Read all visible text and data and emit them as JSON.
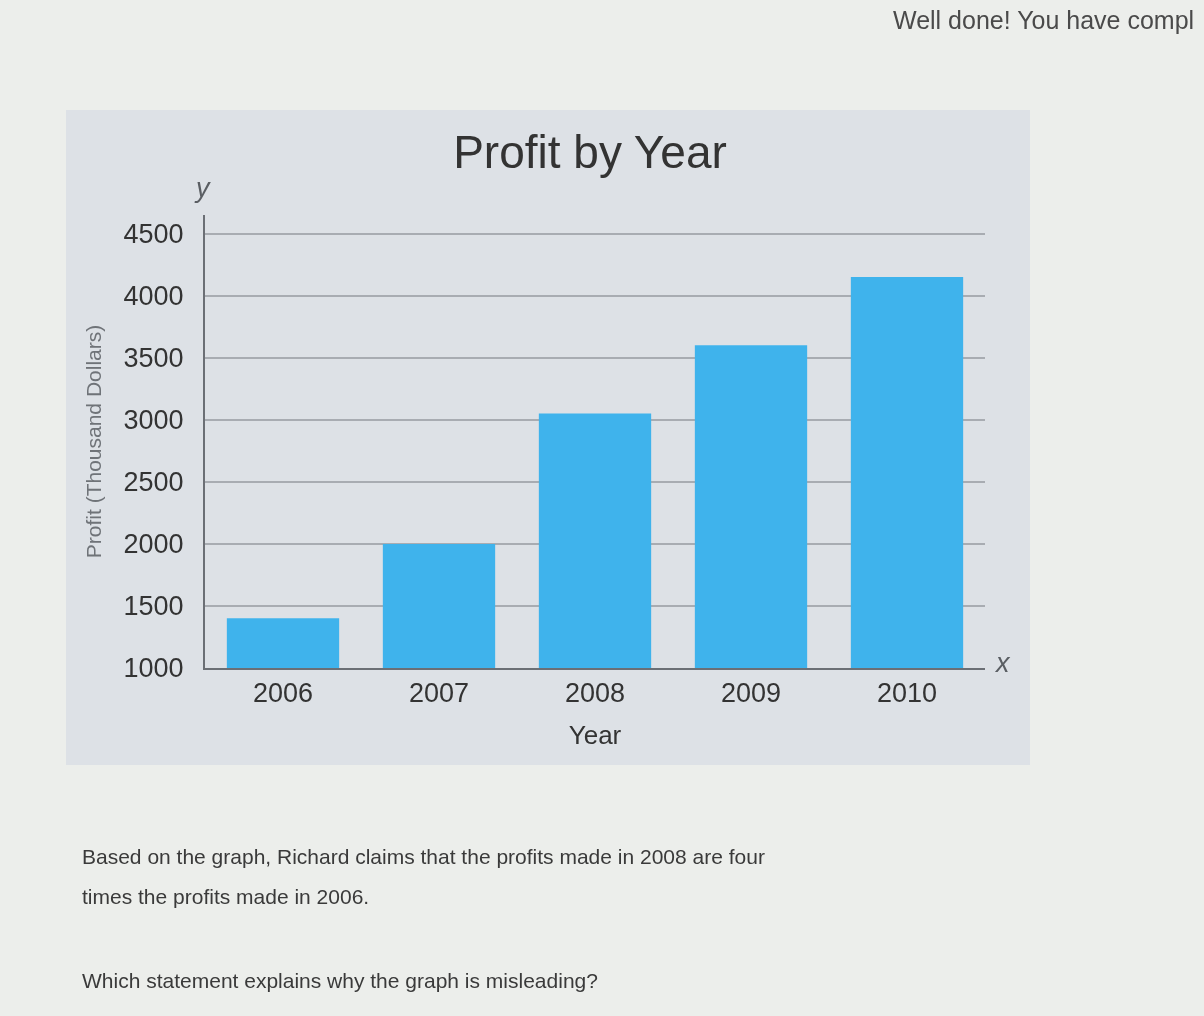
{
  "chart_data": {
    "type": "bar",
    "title": "Profit by Year",
    "xlabel": "Year",
    "ylabel": "Profit (Thousand Dollars)",
    "categories": [
      "2006",
      "2007",
      "2008",
      "2009",
      "2010"
    ],
    "values": [
      1400,
      2000,
      3050,
      3600,
      4150
    ],
    "color": "#3fb3ec",
    "ylim": [
      1000,
      4650
    ],
    "yticks": [
      1000,
      1500,
      2000,
      2500,
      3000,
      3500,
      4000,
      4500
    ],
    "grid": "y",
    "annotations": [
      "Well done! You have compl",
      "y",
      "x",
      "Based on the graph, Richard claims that the profits made in 2008 are four times the profits made in 2006.",
      "Which statement explains why the graph is misleading?"
    ]
  }
}
